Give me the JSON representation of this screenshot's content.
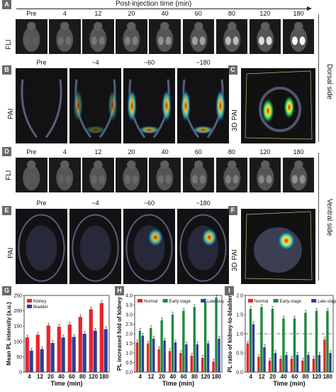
{
  "header": {
    "title": "Post-injection time (min)"
  },
  "panel_letters": [
    "A",
    "B",
    "C",
    "D",
    "E",
    "F",
    "G",
    "H",
    "I"
  ],
  "side_labels": {
    "dorsal": "Dorsal side",
    "ventral": "Ventral side"
  },
  "row_labels": {
    "fli": "FLI",
    "pai": "PAI",
    "pai3d": "3D PAI"
  },
  "fli_times": [
    "Pre",
    "4",
    "12",
    "20",
    "40",
    "60",
    "80",
    "120",
    "180"
  ],
  "pai_times": [
    "Pre",
    "~4",
    "~60",
    "~180"
  ],
  "colors": {
    "red": "#e8242b",
    "blue": "#2e3d9a",
    "green": "#1e8a3c"
  },
  "chart_data": [
    {
      "type": "bar",
      "title": "",
      "xlabel": "Time (min)",
      "ylabel": "Mean PL intensity (a.u.)",
      "categories": [
        "4",
        "12",
        "20",
        "40",
        "60",
        "80",
        "120",
        "180"
      ],
      "ylim": [
        0,
        250
      ],
      "yticks": [
        "0",
        "50",
        "100",
        "150",
        "200",
        "250"
      ],
      "legend": "top-left",
      "series": [
        {
          "name": "Kidney",
          "color": "#e8242b",
          "values": [
            113,
            122,
            152,
            148,
            155,
            180,
            205,
            225
          ]
        },
        {
          "name": "Bladder",
          "color": "#2e3d9a",
          "values": [
            70,
            75,
            95,
            113,
            115,
            125,
            135,
            140
          ]
        }
      ]
    },
    {
      "type": "bar",
      "title": "",
      "xlabel": "Time (min)",
      "ylabel": "PL increased fold of kidney",
      "categories": [
        "4",
        "12",
        "20",
        "40",
        "60",
        "80",
        "120",
        "180"
      ],
      "ylim": [
        0,
        4.0
      ],
      "yticks": [
        "0.0",
        "0.5",
        "1.0",
        "1.5",
        "2.0",
        "2.5",
        "3.0",
        "3.5",
        "4.0"
      ],
      "legend": "top",
      "series": [
        {
          "name": "Normal",
          "color": "#e8242b",
          "values": [
            1.55,
            1.5,
            1.2,
            1.1,
            1.0,
            0.85,
            0.75,
            0.55
          ]
        },
        {
          "name": "Early-stage",
          "color": "#1e8a3c",
          "values": [
            2.15,
            2.3,
            2.7,
            3.0,
            3.2,
            3.4,
            3.7,
            3.9
          ]
        },
        {
          "name": "Late-stage",
          "color": "#2e3d9a",
          "values": [
            1.9,
            1.75,
            1.65,
            1.55,
            1.45,
            1.45,
            1.5,
            1.75
          ]
        }
      ]
    },
    {
      "type": "bar",
      "title": "",
      "xlabel": "Time (min)",
      "ylabel": "PL ratio of kidney-to-bladder",
      "categories": [
        "4",
        "12",
        "20",
        "40",
        "60",
        "80",
        "120",
        "180"
      ],
      "ylim": [
        0,
        2.0
      ],
      "yticks": [
        "0.0",
        "0.5",
        "1.0",
        "1.5",
        "2.0"
      ],
      "legend": "top",
      "reference_line": 1.0,
      "series": [
        {
          "name": "Normal",
          "color": "#e8242b",
          "values": [
            0.75,
            0.4,
            0.3,
            0.35,
            0.35,
            0.3,
            0.35,
            0.85
          ]
        },
        {
          "name": "Early-stage",
          "color": "#1e8a3c",
          "values": [
            1.65,
            1.7,
            1.65,
            1.4,
            1.4,
            1.55,
            1.6,
            1.6
          ]
        },
        {
          "name": "Late-stage",
          "color": "#2e3d9a",
          "values": [
            1.25,
            0.65,
            0.5,
            0.45,
            0.45,
            0.45,
            0.45,
            0.5
          ]
        }
      ]
    }
  ]
}
